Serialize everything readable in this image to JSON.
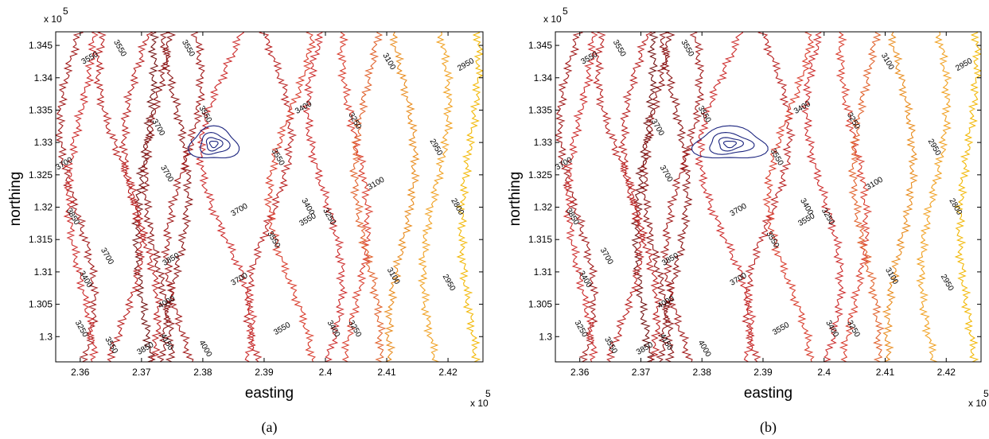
{
  "chart_data": [
    {
      "type": "contour",
      "caption": "(a)",
      "xlabel": "easting",
      "ylabel": "northing",
      "x_multiplier": "x 10",
      "x_multiplier_exponent": "5",
      "y_multiplier": "x 10",
      "y_multiplier_exponent": "5",
      "xlim": [
        2.356,
        2.4257
      ],
      "xticks": [
        2.36,
        2.37,
        2.38,
        2.39,
        2.4,
        2.41,
        2.42
      ],
      "ylim": [
        1.2961,
        1.3471
      ],
      "yticks": [
        1.3,
        1.305,
        1.31,
        1.315,
        1.32,
        1.325,
        1.33,
        1.335,
        1.34,
        1.345
      ],
      "levels": [
        2800,
        2950,
        3100,
        3250,
        3400,
        3550,
        3700,
        3850,
        4000,
        4150
      ],
      "level_colors": [
        "#f2b705",
        "#f0a020",
        "#e88a1a",
        "#e0602a",
        "#d83a2a",
        "#cc2a2a",
        "#b81e1e",
        "#a01818",
        "#8a1212",
        "#701010"
      ],
      "feature_color": "#1a237e",
      "contour_labels": [
        3550,
        3550,
        3550,
        3400,
        3250,
        3100,
        2950,
        3550,
        3700,
        3700,
        3700,
        3550,
        3100,
        2950,
        3850,
        3700,
        3400,
        3250,
        3550,
        2800,
        3550,
        3850,
        3700,
        3400,
        3700,
        3100,
        2950,
        4000,
        3250,
        3550,
        3850,
        4150,
        4000,
        3550,
        3400,
        3250
      ]
    },
    {
      "type": "contour",
      "caption": "(b)",
      "xlabel": "easting",
      "ylabel": "northing",
      "x_multiplier": "x 10",
      "x_multiplier_exponent": "5",
      "y_multiplier": "x 10",
      "y_multiplier_exponent": "5",
      "xlim": [
        2.356,
        2.4257
      ],
      "xticks": [
        2.36,
        2.37,
        2.38,
        2.39,
        2.4,
        2.41,
        2.42
      ],
      "ylim": [
        1.2961,
        1.3471
      ],
      "yticks": [
        1.3,
        1.305,
        1.31,
        1.315,
        1.32,
        1.325,
        1.33,
        1.335,
        1.34,
        1.345
      ],
      "levels": [
        2800,
        2950,
        3100,
        3250,
        3400,
        3550,
        3700,
        3850,
        4000,
        4150
      ],
      "level_colors": [
        "#f2b705",
        "#f0a020",
        "#e88a1a",
        "#e0602a",
        "#d83a2a",
        "#cc2a2a",
        "#b81e1e",
        "#a01818",
        "#8a1212",
        "#701010"
      ],
      "feature_color": "#1a237e",
      "contour_labels": [
        3550,
        3550,
        3550,
        3400,
        3250,
        3100,
        2950,
        3550,
        3700,
        3700,
        3700,
        3550,
        3100,
        2950,
        3850,
        3700,
        3400,
        3250,
        3550,
        2800,
        3550,
        3850,
        3700,
        3400,
        3700,
        3100,
        2950,
        4000,
        3250,
        3550,
        3850,
        4150,
        4000,
        3550,
        3400,
        3250
      ]
    }
  ]
}
